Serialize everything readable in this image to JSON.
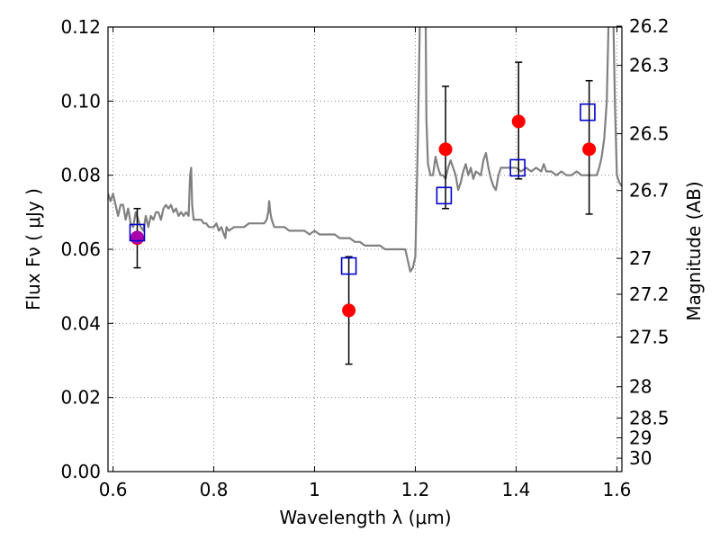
{
  "chart_data": {
    "type": "scatter",
    "xlabel": "Wavelength  λ (μm)",
    "ylabel": "Flux  Fν  ( μJy )",
    "y2label": "Magnitude (AB)",
    "xlim": [
      0.59,
      1.61
    ],
    "ylim": [
      0.0,
      0.12
    ],
    "grid": true,
    "x_ticks": [
      {
        "value": 0.6,
        "label": "0.6"
      },
      {
        "value": 0.8,
        "label": "0.8"
      },
      {
        "value": 1.0,
        "label": "1"
      },
      {
        "value": 1.2,
        "label": "1.2"
      },
      {
        "value": 1.4,
        "label": "1.4"
      },
      {
        "value": 1.6,
        "label": "1.6"
      }
    ],
    "y_ticks": [
      {
        "value": 0.0,
        "label": "0.00"
      },
      {
        "value": 0.02,
        "label": "0.02"
      },
      {
        "value": 0.04,
        "label": "0.04"
      },
      {
        "value": 0.06,
        "label": "0.06"
      },
      {
        "value": 0.08,
        "label": "0.08"
      },
      {
        "value": 0.1,
        "label": "0.10"
      },
      {
        "value": 0.12,
        "label": "0.12"
      }
    ],
    "mag_ticks": [
      {
        "value": 26.2,
        "label": "26.2"
      },
      {
        "value": 26.3,
        "label": "26.3"
      },
      {
        "value": 26.5,
        "label": "26.5"
      },
      {
        "value": 26.7,
        "label": "26.7"
      },
      {
        "value": 27.0,
        "label": "27"
      },
      {
        "value": 27.2,
        "label": "27.2"
      },
      {
        "value": 27.5,
        "label": "27.5"
      },
      {
        "value": 28.0,
        "label": "28"
      },
      {
        "value": 28.5,
        "label": "28.5"
      },
      {
        "value": 29.0,
        "label": "29"
      },
      {
        "value": 30.0,
        "label": "30"
      }
    ],
    "colors": {
      "spectrum": "#808080",
      "observed": "#ff0000",
      "model": "#0000cc",
      "highlight": "#aa00aa",
      "errorbar": "#000000",
      "grid": "#888888"
    },
    "spectrum": [
      [
        0.59,
        0.075
      ],
      [
        0.595,
        0.073
      ],
      [
        0.6,
        0.075
      ],
      [
        0.605,
        0.072
      ],
      [
        0.61,
        0.069
      ],
      [
        0.615,
        0.072
      ],
      [
        0.62,
        0.072
      ],
      [
        0.625,
        0.068
      ],
      [
        0.63,
        0.071
      ],
      [
        0.635,
        0.067
      ],
      [
        0.64,
        0.066
      ],
      [
        0.645,
        0.07
      ],
      [
        0.65,
        0.068
      ],
      [
        0.655,
        0.066
      ],
      [
        0.66,
        0.065
      ],
      [
        0.665,
        0.069
      ],
      [
        0.67,
        0.066
      ],
      [
        0.675,
        0.069
      ],
      [
        0.68,
        0.068
      ],
      [
        0.685,
        0.07
      ],
      [
        0.69,
        0.07
      ],
      [
        0.695,
        0.068
      ],
      [
        0.7,
        0.071
      ],
      [
        0.705,
        0.072
      ],
      [
        0.71,
        0.071
      ],
      [
        0.715,
        0.072
      ],
      [
        0.72,
        0.07
      ],
      [
        0.725,
        0.071
      ],
      [
        0.73,
        0.069
      ],
      [
        0.735,
        0.07
      ],
      [
        0.74,
        0.069
      ],
      [
        0.745,
        0.07
      ],
      [
        0.75,
        0.069
      ],
      [
        0.753,
        0.08
      ],
      [
        0.755,
        0.082
      ],
      [
        0.757,
        0.072
      ],
      [
        0.76,
        0.068
      ],
      [
        0.765,
        0.068
      ],
      [
        0.77,
        0.068
      ],
      [
        0.775,
        0.068
      ],
      [
        0.78,
        0.067
      ],
      [
        0.785,
        0.067
      ],
      [
        0.79,
        0.066
      ],
      [
        0.795,
        0.066
      ],
      [
        0.8,
        0.066
      ],
      [
        0.805,
        0.067
      ],
      [
        0.81,
        0.065
      ],
      [
        0.815,
        0.066
      ],
      [
        0.82,
        0.064
      ],
      [
        0.823,
        0.063
      ],
      [
        0.825,
        0.066
      ],
      [
        0.83,
        0.065
      ],
      [
        0.84,
        0.066
      ],
      [
        0.85,
        0.066
      ],
      [
        0.86,
        0.066
      ],
      [
        0.87,
        0.067
      ],
      [
        0.88,
        0.067
      ],
      [
        0.89,
        0.067
      ],
      [
        0.9,
        0.067
      ],
      [
        0.905,
        0.068
      ],
      [
        0.908,
        0.07
      ],
      [
        0.91,
        0.073
      ],
      [
        0.912,
        0.07
      ],
      [
        0.915,
        0.068
      ],
      [
        0.92,
        0.066
      ],
      [
        0.93,
        0.066
      ],
      [
        0.94,
        0.066
      ],
      [
        0.95,
        0.065
      ],
      [
        0.96,
        0.065
      ],
      [
        0.97,
        0.065
      ],
      [
        0.98,
        0.065
      ],
      [
        0.99,
        0.064
      ],
      [
        1.0,
        0.065
      ],
      [
        1.01,
        0.064
      ],
      [
        1.02,
        0.064
      ],
      [
        1.03,
        0.064
      ],
      [
        1.04,
        0.064
      ],
      [
        1.05,
        0.063
      ],
      [
        1.06,
        0.063
      ],
      [
        1.07,
        0.063
      ],
      [
        1.08,
        0.062
      ],
      [
        1.09,
        0.062
      ],
      [
        1.1,
        0.061
      ],
      [
        1.11,
        0.061
      ],
      [
        1.12,
        0.061
      ],
      [
        1.13,
        0.061
      ],
      [
        1.14,
        0.06
      ],
      [
        1.15,
        0.06
      ],
      [
        1.16,
        0.06
      ],
      [
        1.17,
        0.06
      ],
      [
        1.18,
        0.06
      ],
      [
        1.185,
        0.057
      ],
      [
        1.19,
        0.054
      ],
      [
        1.195,
        0.055
      ],
      [
        1.2,
        0.058
      ],
      [
        1.205,
        0.09
      ],
      [
        1.21,
        0.13
      ],
      [
        1.22,
        0.13
      ],
      [
        1.222,
        0.095
      ],
      [
        1.225,
        0.083
      ],
      [
        1.23,
        0.08
      ],
      [
        1.235,
        0.08
      ],
      [
        1.24,
        0.085
      ],
      [
        1.245,
        0.082
      ],
      [
        1.25,
        0.08
      ],
      [
        1.255,
        0.08
      ],
      [
        1.26,
        0.079
      ],
      [
        1.265,
        0.082
      ],
      [
        1.27,
        0.084
      ],
      [
        1.28,
        0.08
      ],
      [
        1.285,
        0.076
      ],
      [
        1.29,
        0.078
      ],
      [
        1.295,
        0.081
      ],
      [
        1.3,
        0.083
      ],
      [
        1.305,
        0.08
      ],
      [
        1.31,
        0.082
      ],
      [
        1.315,
        0.079
      ],
      [
        1.32,
        0.081
      ],
      [
        1.33,
        0.08
      ],
      [
        1.335,
        0.084
      ],
      [
        1.34,
        0.086
      ],
      [
        1.345,
        0.082
      ],
      [
        1.35,
        0.079
      ],
      [
        1.355,
        0.077
      ],
      [
        1.36,
        0.076
      ],
      [
        1.365,
        0.08
      ],
      [
        1.37,
        0.082
      ],
      [
        1.38,
        0.082
      ],
      [
        1.39,
        0.082
      ],
      [
        1.4,
        0.082
      ],
      [
        1.41,
        0.081
      ],
      [
        1.42,
        0.082
      ],
      [
        1.43,
        0.081
      ],
      [
        1.44,
        0.082
      ],
      [
        1.45,
        0.081
      ],
      [
        1.455,
        0.083
      ],
      [
        1.46,
        0.081
      ],
      [
        1.47,
        0.081
      ],
      [
        1.48,
        0.08
      ],
      [
        1.49,
        0.081
      ],
      [
        1.5,
        0.08
      ],
      [
        1.51,
        0.08
      ],
      [
        1.52,
        0.081
      ],
      [
        1.53,
        0.08
      ],
      [
        1.54,
        0.08
      ],
      [
        1.55,
        0.08
      ],
      [
        1.56,
        0.08
      ],
      [
        1.565,
        0.082
      ],
      [
        1.57,
        0.085
      ],
      [
        1.575,
        0.09
      ],
      [
        1.58,
        0.1
      ],
      [
        1.585,
        0.13
      ],
      [
        1.592,
        0.13
      ],
      [
        1.596,
        0.1
      ],
      [
        1.6,
        0.08
      ],
      [
        1.605,
        0.078
      ],
      [
        1.61,
        0.077
      ]
    ],
    "observed": [
      {
        "x": 0.648,
        "y": 0.063,
        "yerr_low": 0.055,
        "yerr_high": 0.071
      },
      {
        "x": 1.068,
        "y": 0.0435,
        "yerr_low": 0.029,
        "yerr_high": 0.058
      },
      {
        "x": 1.26,
        "y": 0.087,
        "yerr_low": 0.071,
        "yerr_high": 0.104
      },
      {
        "x": 1.405,
        "y": 0.0945,
        "yerr_low": 0.079,
        "yerr_high": 0.1105
      },
      {
        "x": 1.545,
        "y": 0.087,
        "yerr_low": 0.0695,
        "yerr_high": 0.1055
      }
    ],
    "model": [
      {
        "x": 0.648,
        "y": 0.0645
      },
      {
        "x": 1.068,
        "y": 0.0555
      },
      {
        "x": 1.257,
        "y": 0.0745
      },
      {
        "x": 1.403,
        "y": 0.082
      },
      {
        "x": 1.542,
        "y": 0.097
      }
    ],
    "highlight": {
      "x": 0.648,
      "y": 0.0632
    }
  }
}
